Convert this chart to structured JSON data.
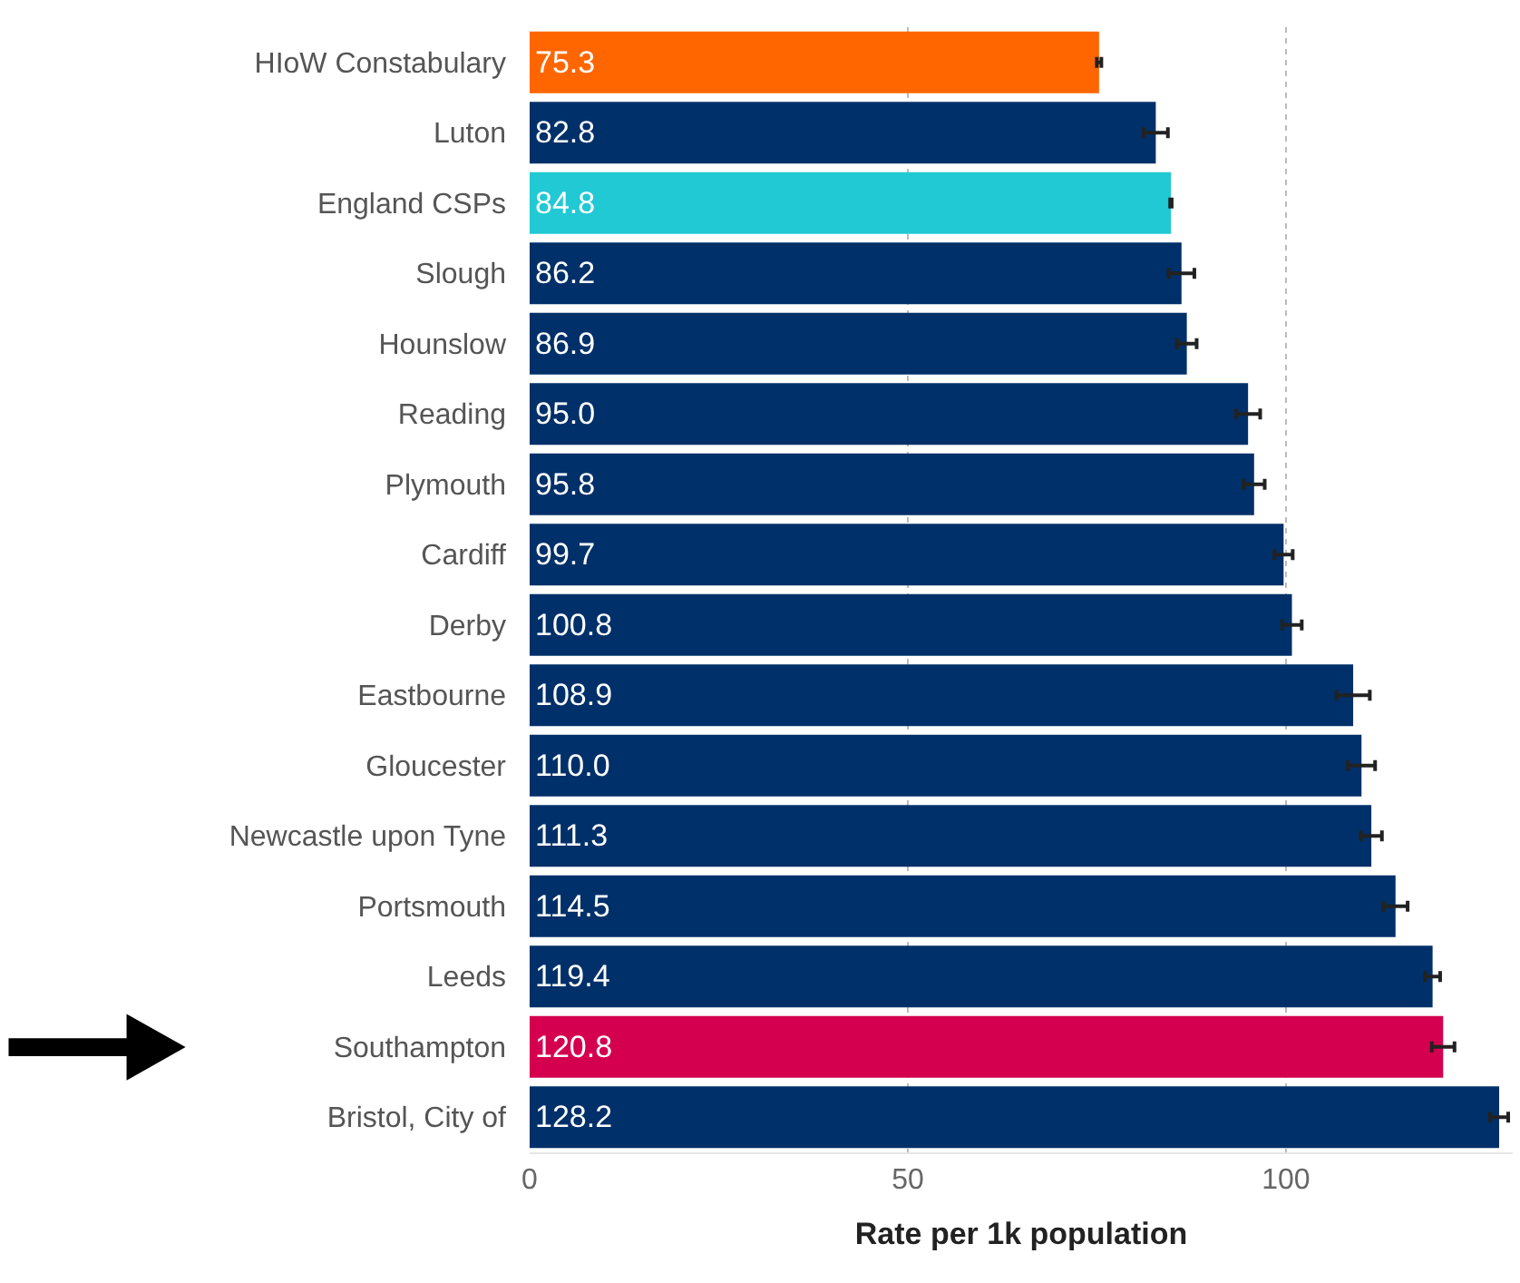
{
  "chart_data": {
    "type": "bar",
    "orientation": "horizontal",
    "xlabel": "Rate per 1k population",
    "categories": [
      "HIoW Constabulary",
      "Luton",
      "England CSPs",
      "Slough",
      "Hounslow",
      "Reading",
      "Plymouth",
      "Cardiff",
      "Derby",
      "Eastbourne",
      "Gloucester",
      "Newcastle upon Tyne",
      "Portsmouth",
      "Leeds",
      "Southampton",
      "Bristol, City of"
    ],
    "values": [
      75.3,
      82.8,
      84.8,
      86.2,
      86.9,
      95.0,
      95.8,
      99.7,
      100.8,
      108.9,
      110.0,
      111.3,
      114.5,
      119.4,
      120.8,
      128.2
    ],
    "errors": [
      0.3,
      1.6,
      0.1,
      1.7,
      1.3,
      1.6,
      1.4,
      1.2,
      1.3,
      2.2,
      1.8,
      1.4,
      1.6,
      1.0,
      1.5,
      1.2
    ],
    "colors": [
      "#ff6600",
      "#003069",
      "#20c9d4",
      "#003069",
      "#003069",
      "#003069",
      "#003069",
      "#003069",
      "#003069",
      "#003069",
      "#003069",
      "#003069",
      "#003069",
      "#003069",
      "#d4004f",
      "#003069"
    ],
    "value_labels": [
      "75.3",
      "82.8",
      "84.8",
      "86.2",
      "86.9",
      "95.0",
      "95.8",
      "99.7",
      "100.8",
      "108.9",
      "110.0",
      "111.3",
      "114.5",
      "119.4",
      "120.8",
      "128.2"
    ],
    "xlim": [
      0,
      130
    ],
    "xticks": [
      0,
      50,
      100
    ],
    "grid": "x"
  }
}
